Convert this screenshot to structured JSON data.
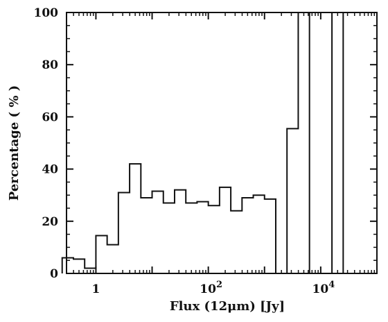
{
  "chart_data": {
    "type": "bar",
    "style": "step-histogram",
    "title": "",
    "xlabel": "Flux (12μm)  [Jy]",
    "ylabel": "Percentage ( % )",
    "xscale": "log",
    "xlim": [
      0.3,
      100000
    ],
    "ylim": [
      0,
      100
    ],
    "grid": false,
    "x_ticks": [
      {
        "value": 1,
        "label": "1"
      },
      {
        "value": 100,
        "label": "10",
        "exp": "2"
      },
      {
        "value": 10000,
        "label": "10",
        "exp": "4"
      }
    ],
    "y_ticks": [
      0,
      20,
      40,
      60,
      80,
      100
    ],
    "bins_log10_flux": {
      "start": -0.6,
      "width": 0.2,
      "values": [
        6,
        5.5,
        2,
        14.5,
        11,
        31,
        42,
        29,
        31.5,
        27,
        32,
        27,
        27.5,
        26,
        33,
        24,
        29,
        30,
        28.5,
        0,
        55.5,
        100,
        0,
        0,
        100,
        0
      ]
    }
  }
}
